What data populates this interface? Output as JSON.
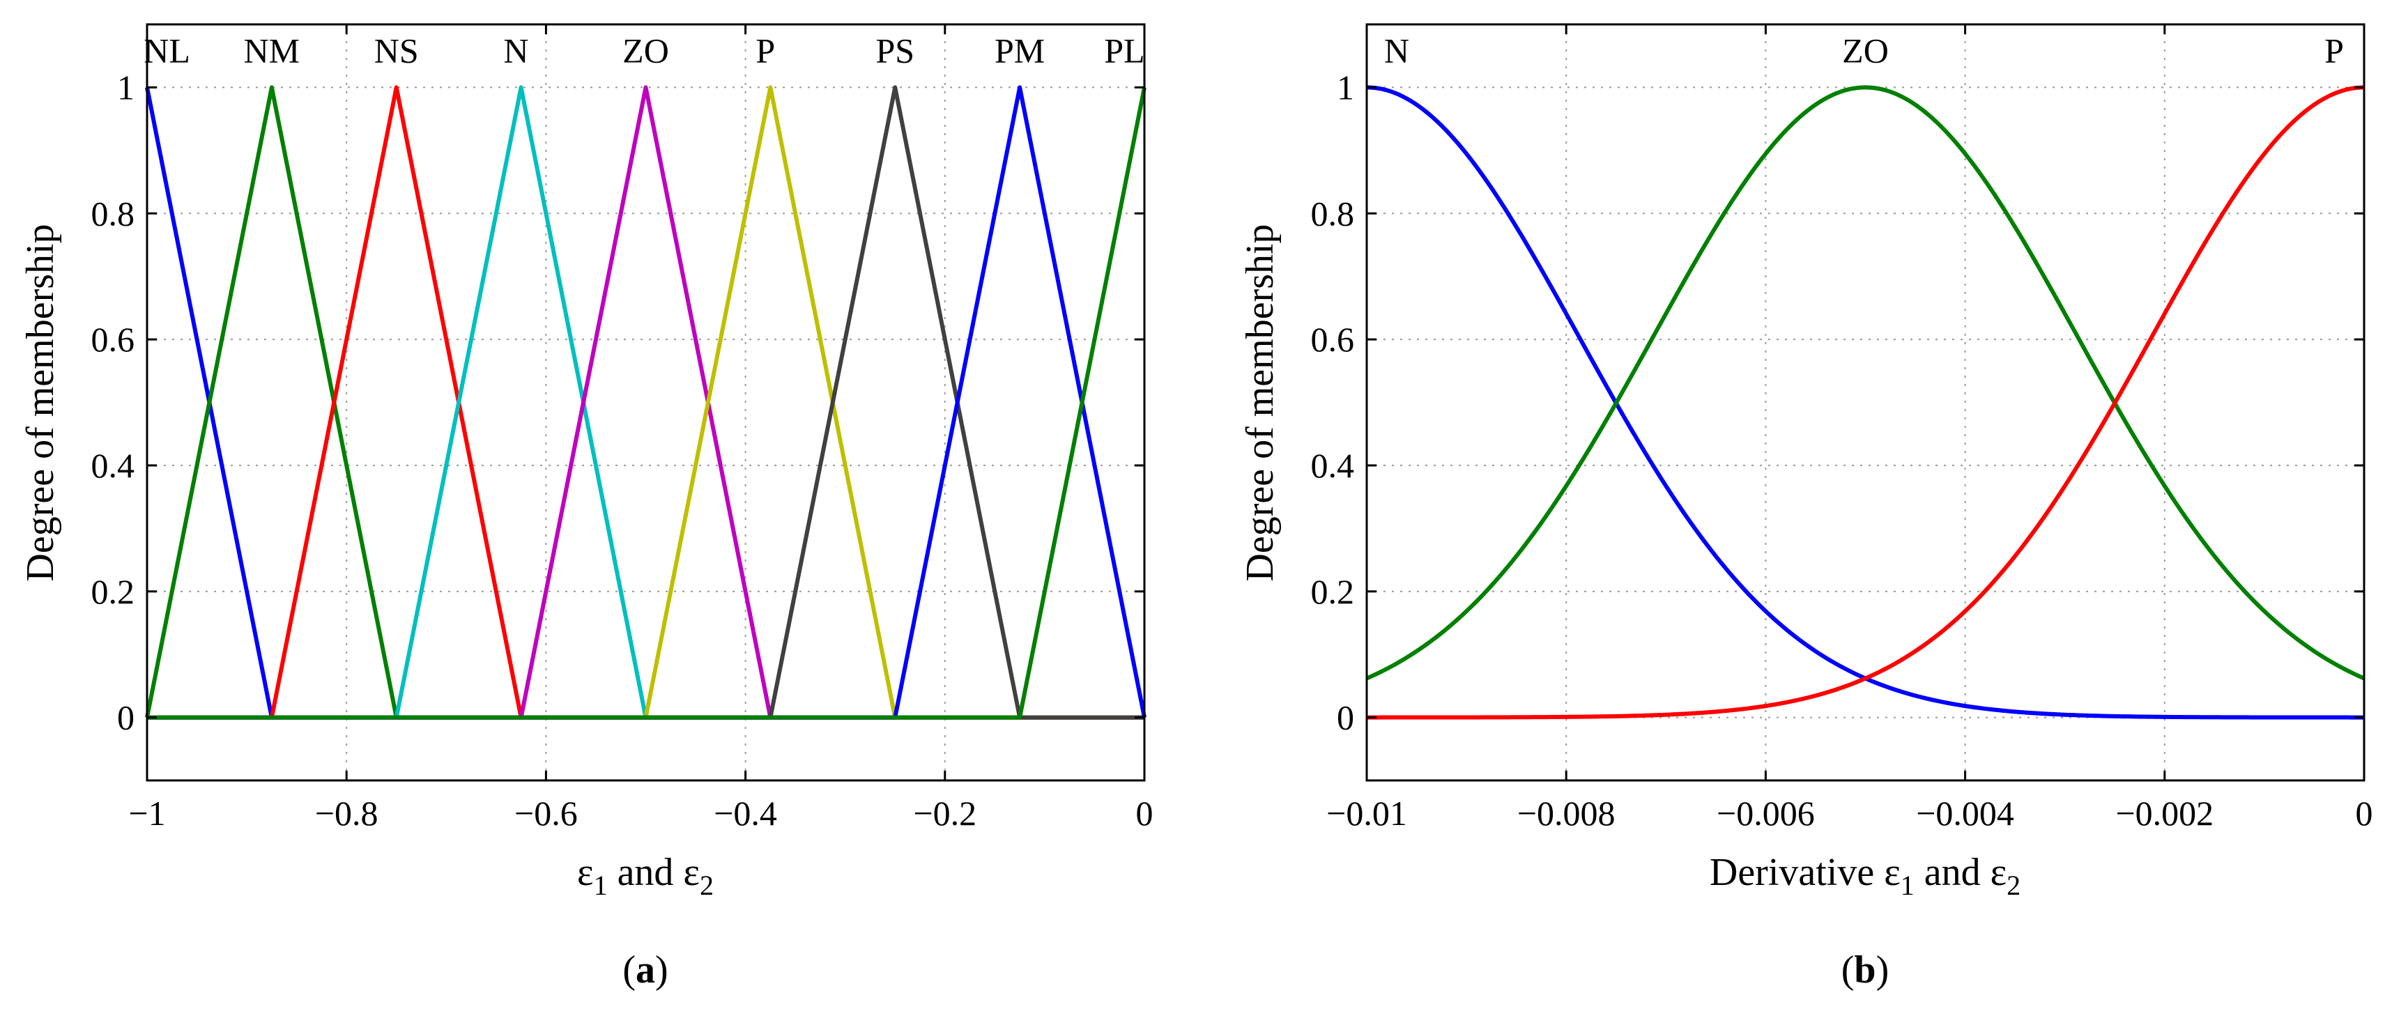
{
  "chart_data": [
    {
      "type": "line",
      "id": "a",
      "caption_letter": "a",
      "title": "",
      "xlabel": "ε",
      "xlabel_parts": [
        "ε",
        "1",
        " and ε",
        "2"
      ],
      "ylabel": "Degree of membership",
      "xlim": [
        -1,
        0
      ],
      "ylim": [
        -0.1,
        1.1
      ],
      "xticks": [
        -1,
        -0.8,
        -0.6,
        -0.4,
        -0.2,
        0
      ],
      "xtick_labels": [
        "−1",
        "−0.8",
        "−0.6",
        "−0.4",
        "−0.2",
        "0"
      ],
      "yticks": [
        0,
        0.2,
        0.4,
        0.6,
        0.8,
        1
      ],
      "ytick_labels": [
        "0",
        "0.2",
        "0.4",
        "0.6",
        "0.8",
        "1"
      ],
      "grid": true,
      "series": [
        {
          "name": "NL",
          "color": "#0000ff",
          "x": [
            -1,
            -0.875,
            0
          ],
          "y": [
            1,
            0,
            0
          ]
        },
        {
          "name": "NM",
          "color": "#008000",
          "x": [
            -1,
            -0.875,
            -0.75,
            0
          ],
          "y": [
            0,
            1,
            0,
            0
          ]
        },
        {
          "name": "NS",
          "color": "#ff0000",
          "x": [
            -1,
            -0.875,
            -0.75,
            -0.625,
            0
          ],
          "y": [
            0,
            0,
            1,
            0,
            0
          ]
        },
        {
          "name": "N",
          "color": "#00bfbf",
          "x": [
            -1,
            -0.75,
            -0.625,
            -0.5,
            0
          ],
          "y": [
            0,
            0,
            1,
            0,
            0
          ]
        },
        {
          "name": "ZO",
          "color": "#bf00bf",
          "x": [
            -1,
            -0.625,
            -0.5,
            -0.375,
            0
          ],
          "y": [
            0,
            0,
            1,
            0,
            0
          ]
        },
        {
          "name": "P",
          "color": "#bfbf00",
          "x": [
            -1,
            -0.5,
            -0.375,
            -0.25,
            0
          ],
          "y": [
            0,
            0,
            1,
            0,
            0
          ]
        },
        {
          "name": "PS",
          "color": "#404040",
          "x": [
            -1,
            -0.375,
            -0.25,
            -0.125,
            0
          ],
          "y": [
            0,
            0,
            1,
            0,
            0
          ]
        },
        {
          "name": "PM",
          "color": "#0000ff",
          "x": [
            -1,
            -0.25,
            -0.125,
            0
          ],
          "y": [
            0,
            0,
            1,
            0
          ]
        },
        {
          "name": "PL",
          "color": "#008000",
          "x": [
            -1,
            -0.125,
            0
          ],
          "y": [
            0,
            0,
            1
          ]
        }
      ],
      "annotations": [
        {
          "text": "NL",
          "x": -0.98,
          "y": 1.04
        },
        {
          "text": "NM",
          "x": -0.875,
          "y": 1.04
        },
        {
          "text": "NS",
          "x": -0.75,
          "y": 1.04
        },
        {
          "text": "N",
          "x": -0.63,
          "y": 1.04
        },
        {
          "text": "ZO",
          "x": -0.5,
          "y": 1.04
        },
        {
          "text": "P",
          "x": -0.38,
          "y": 1.04
        },
        {
          "text": "PS",
          "x": -0.25,
          "y": 1.04
        },
        {
          "text": "PM",
          "x": -0.125,
          "y": 1.04
        },
        {
          "text": "PL",
          "x": -0.02,
          "y": 1.04
        }
      ]
    },
    {
      "type": "line",
      "id": "b",
      "caption_letter": "b",
      "title": "",
      "xlabel": "Derivative ε",
      "xlabel_parts": [
        "Derivative ε",
        "1",
        " and ε",
        "2"
      ],
      "ylabel": "Degree of membership",
      "xlim": [
        -0.01,
        0
      ],
      "ylim": [
        -0.1,
        1.1
      ],
      "xticks": [
        -0.01,
        -0.008,
        -0.006,
        -0.004,
        -0.002,
        0
      ],
      "xtick_labels": [
        "−0.01",
        "−0.008",
        "−0.006",
        "−0.004",
        "−0.002",
        "0"
      ],
      "yticks": [
        0,
        0.2,
        0.4,
        0.6,
        0.8,
        1
      ],
      "ytick_labels": [
        "0",
        "0.2",
        "0.4",
        "0.6",
        "0.8",
        "1"
      ],
      "grid": true,
      "series": [
        {
          "name": "N",
          "color": "#0000ff",
          "shape": "gaussian",
          "center": -0.01,
          "sigma": 0.00212
        },
        {
          "name": "ZO",
          "color": "#008000",
          "shape": "gaussian",
          "center": -0.005,
          "sigma": 0.00212
        },
        {
          "name": "P",
          "color": "#ff0000",
          "shape": "gaussian",
          "center": 0,
          "sigma": 0.00212
        }
      ],
      "annotations": [
        {
          "text": "N",
          "x": -0.0097,
          "y": 1.04
        },
        {
          "text": "ZO",
          "x": -0.005,
          "y": 1.04
        },
        {
          "text": "P",
          "x": -0.0003,
          "y": 1.04
        }
      ]
    }
  ]
}
